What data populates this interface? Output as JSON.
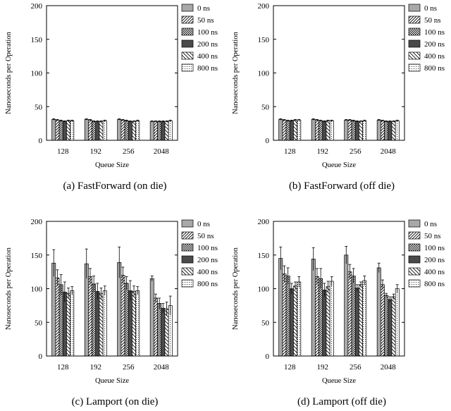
{
  "figure": {
    "legend": [
      "0 ns",
      "50 ns",
      "100 ns",
      "200 ns",
      "400 ns",
      "800 ns"
    ],
    "legend_placement": "right"
  },
  "chart_data": [
    {
      "type": "bar",
      "caption": "(a)  FastForward (on die)",
      "xlabel": "Queue Size",
      "ylabel": "Nanoseconds per Operation",
      "ylim": [
        0,
        200
      ],
      "yticks": [
        0,
        50,
        100,
        150,
        200
      ],
      "categories": [
        "128",
        "192",
        "256",
        "2048"
      ],
      "series": [
        {
          "name": "0 ns",
          "values": [
            31,
            31,
            31,
            28
          ],
          "errors": [
            1,
            1,
            1,
            1
          ]
        },
        {
          "name": "50 ns",
          "values": [
            30,
            30,
            30,
            28
          ],
          "errors": [
            1,
            1,
            1,
            1
          ]
        },
        {
          "name": "100 ns",
          "values": [
            29,
            28,
            29,
            28
          ],
          "errors": [
            1,
            1,
            1,
            1
          ]
        },
        {
          "name": "200 ns",
          "values": [
            28,
            28,
            28,
            28
          ],
          "errors": [
            1,
            1,
            1,
            1
          ]
        },
        {
          "name": "400 ns",
          "values": [
            29,
            28,
            28,
            28
          ],
          "errors": [
            1,
            1,
            1,
            1
          ]
        },
        {
          "name": "800 ns",
          "values": [
            29,
            29,
            29,
            29
          ],
          "errors": [
            1,
            1,
            1,
            1
          ]
        }
      ]
    },
    {
      "type": "bar",
      "caption": "(b)  FastForward (off die)",
      "xlabel": "Queue Size",
      "ylabel": "Nanoseconds per Operation",
      "ylim": [
        0,
        200
      ],
      "yticks": [
        0,
        50,
        100,
        150,
        200
      ],
      "categories": [
        "128",
        "192",
        "256",
        "2048"
      ],
      "series": [
        {
          "name": "0 ns",
          "values": [
            31,
            31,
            30,
            30
          ],
          "errors": [
            1,
            1,
            1,
            1
          ]
        },
        {
          "name": "50 ns",
          "values": [
            30,
            30,
            30,
            29
          ],
          "errors": [
            1,
            1,
            1,
            1
          ]
        },
        {
          "name": "100 ns",
          "values": [
            29,
            29,
            29,
            28
          ],
          "errors": [
            1,
            1,
            1,
            1
          ]
        },
        {
          "name": "200 ns",
          "values": [
            29,
            28,
            28,
            28
          ],
          "errors": [
            1,
            1,
            1,
            1
          ]
        },
        {
          "name": "400 ns",
          "values": [
            30,
            29,
            28,
            28
          ],
          "errors": [
            1,
            1,
            1,
            1
          ]
        },
        {
          "name": "800 ns",
          "values": [
            30,
            29,
            29,
            29
          ],
          "errors": [
            1,
            1,
            1,
            1
          ]
        }
      ]
    },
    {
      "type": "bar",
      "caption": "(c)  Lamport (on die)",
      "xlabel": "Queue Size",
      "ylabel": "Nanoseconds per Operation",
      "ylim": [
        0,
        200
      ],
      "yticks": [
        0,
        50,
        100,
        150,
        200
      ],
      "categories": [
        "128",
        "192",
        "256",
        "2048"
      ],
      "series": [
        {
          "name": "0 ns",
          "values": [
            138,
            137,
            139,
            115
          ],
          "errors": [
            20,
            22,
            23,
            4
          ]
        },
        {
          "name": "50 ns",
          "values": [
            116,
            118,
            120,
            86
          ],
          "errors": [
            12,
            12,
            12,
            6
          ]
        },
        {
          "name": "100 ns",
          "values": [
            106,
            107,
            108,
            78
          ],
          "errors": [
            15,
            12,
            10,
            8
          ]
        },
        {
          "name": "200 ns",
          "values": [
            95,
            96,
            97,
            71
          ],
          "errors": [
            15,
            12,
            15,
            7
          ]
        },
        {
          "name": "400 ns",
          "values": [
            93,
            93,
            96,
            70
          ],
          "errors": [
            8,
            8,
            8,
            10
          ]
        },
        {
          "name": "800 ns",
          "values": [
            97,
            97,
            97,
            75
          ],
          "errors": [
            6,
            7,
            6,
            14
          ]
        }
      ]
    },
    {
      "type": "bar",
      "caption": "(d)  Lamport (off die)",
      "xlabel": "Queue Size",
      "ylabel": "Nanoseconds per Operation",
      "ylim": [
        0,
        200
      ],
      "yticks": [
        0,
        50,
        100,
        150,
        200
      ],
      "categories": [
        "128",
        "192",
        "256",
        "2048"
      ],
      "series": [
        {
          "name": "0 ns",
          "values": [
            145,
            144,
            150,
            131
          ],
          "errors": [
            17,
            17,
            13,
            7
          ]
        },
        {
          "name": "50 ns",
          "values": [
            122,
            118,
            125,
            106
          ],
          "errors": [
            12,
            12,
            11,
            7
          ]
        },
        {
          "name": "100 ns",
          "values": [
            119,
            115,
            119,
            90
          ],
          "errors": [
            12,
            15,
            11,
            3
          ]
        },
        {
          "name": "200 ns",
          "values": [
            100,
            98,
            101,
            84
          ],
          "errors": [
            8,
            10,
            5,
            4
          ]
        },
        {
          "name": "400 ns",
          "values": [
            104,
            103,
            106,
            88
          ],
          "errors": [
            6,
            8,
            4,
            4
          ]
        },
        {
          "name": "800 ns",
          "values": [
            110,
            111,
            112,
            100
          ],
          "errors": [
            8,
            7,
            7,
            6
          ]
        }
      ]
    }
  ]
}
